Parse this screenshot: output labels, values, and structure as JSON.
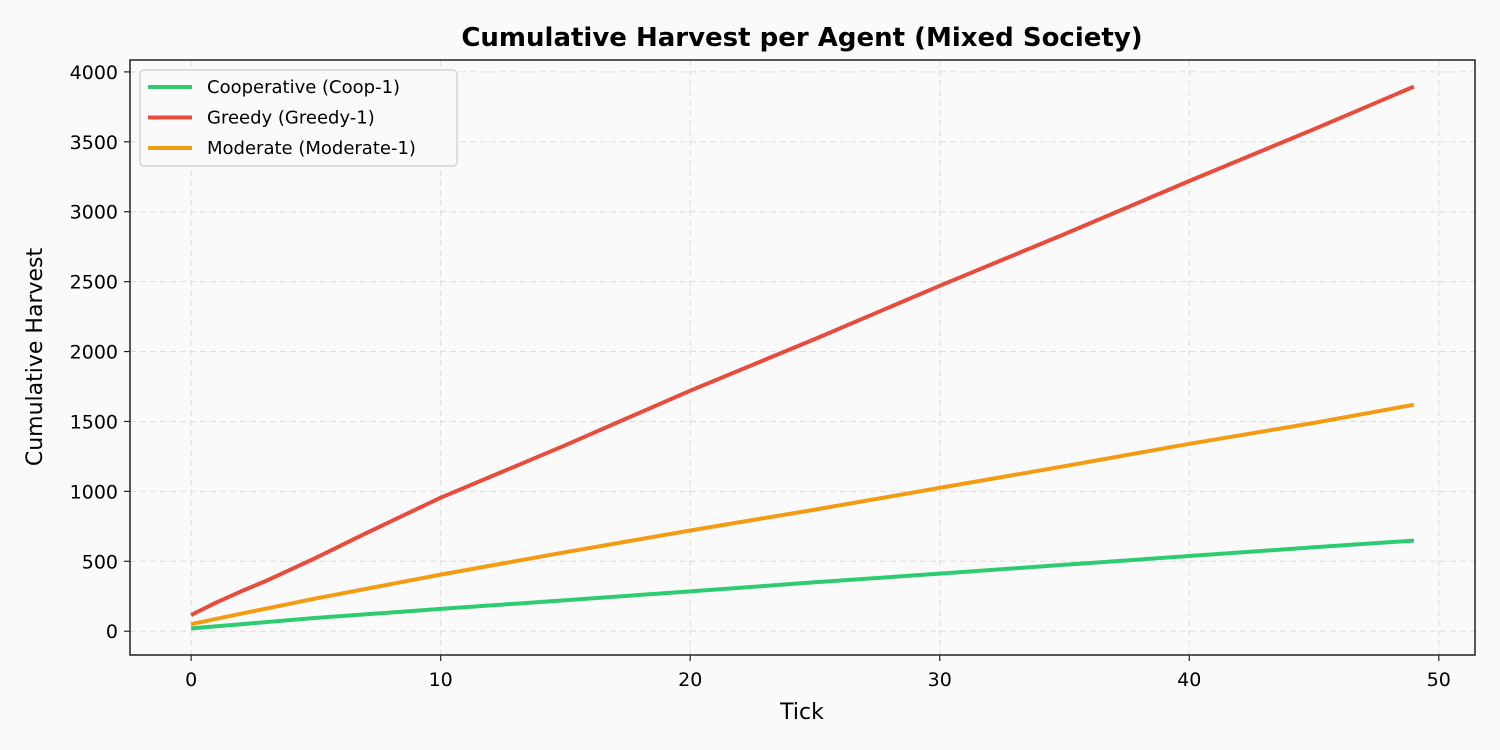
{
  "chart_data": {
    "type": "line",
    "title": "Cumulative Harvest per Agent (Mixed Society)",
    "xlabel": "Tick",
    "ylabel": "Cumulative Harvest",
    "xlim": [
      -2.45,
      51.45
    ],
    "ylim": [
      -170,
      4085
    ],
    "xticks": [
      0,
      10,
      20,
      30,
      40,
      50
    ],
    "yticks": [
      0,
      500,
      1000,
      1500,
      2000,
      2500,
      3000,
      3500,
      4000
    ],
    "grid": true,
    "legend_position": "top-left",
    "series": [
      {
        "name": "Cooperative (Coop-1)",
        "color": "#2ecc71",
        "x": [
          0,
          2,
          5,
          10,
          15,
          20,
          25,
          30,
          35,
          40,
          45,
          49
        ],
        "values": [
          20,
          50,
          95,
          160,
          222,
          285,
          350,
          412,
          475,
          538,
          600,
          648
        ]
      },
      {
        "name": "Greedy (Greedy-1)",
        "color": "#e74c3c",
        "x": [
          0,
          1,
          2,
          3,
          5,
          7,
          10,
          15,
          20,
          25,
          30,
          35,
          40,
          45,
          49
        ],
        "values": [
          115,
          205,
          285,
          360,
          525,
          700,
          955,
          1330,
          1720,
          2090,
          2470,
          2840,
          3220,
          3590,
          3895
        ]
      },
      {
        "name": "Moderate (Moderate-1)",
        "color": "#f39c12",
        "x": [
          0,
          2,
          5,
          10,
          15,
          20,
          25,
          30,
          35,
          40,
          45,
          49
        ],
        "values": [
          50,
          125,
          235,
          405,
          565,
          720,
          870,
          1025,
          1180,
          1340,
          1490,
          1620
        ]
      }
    ]
  }
}
